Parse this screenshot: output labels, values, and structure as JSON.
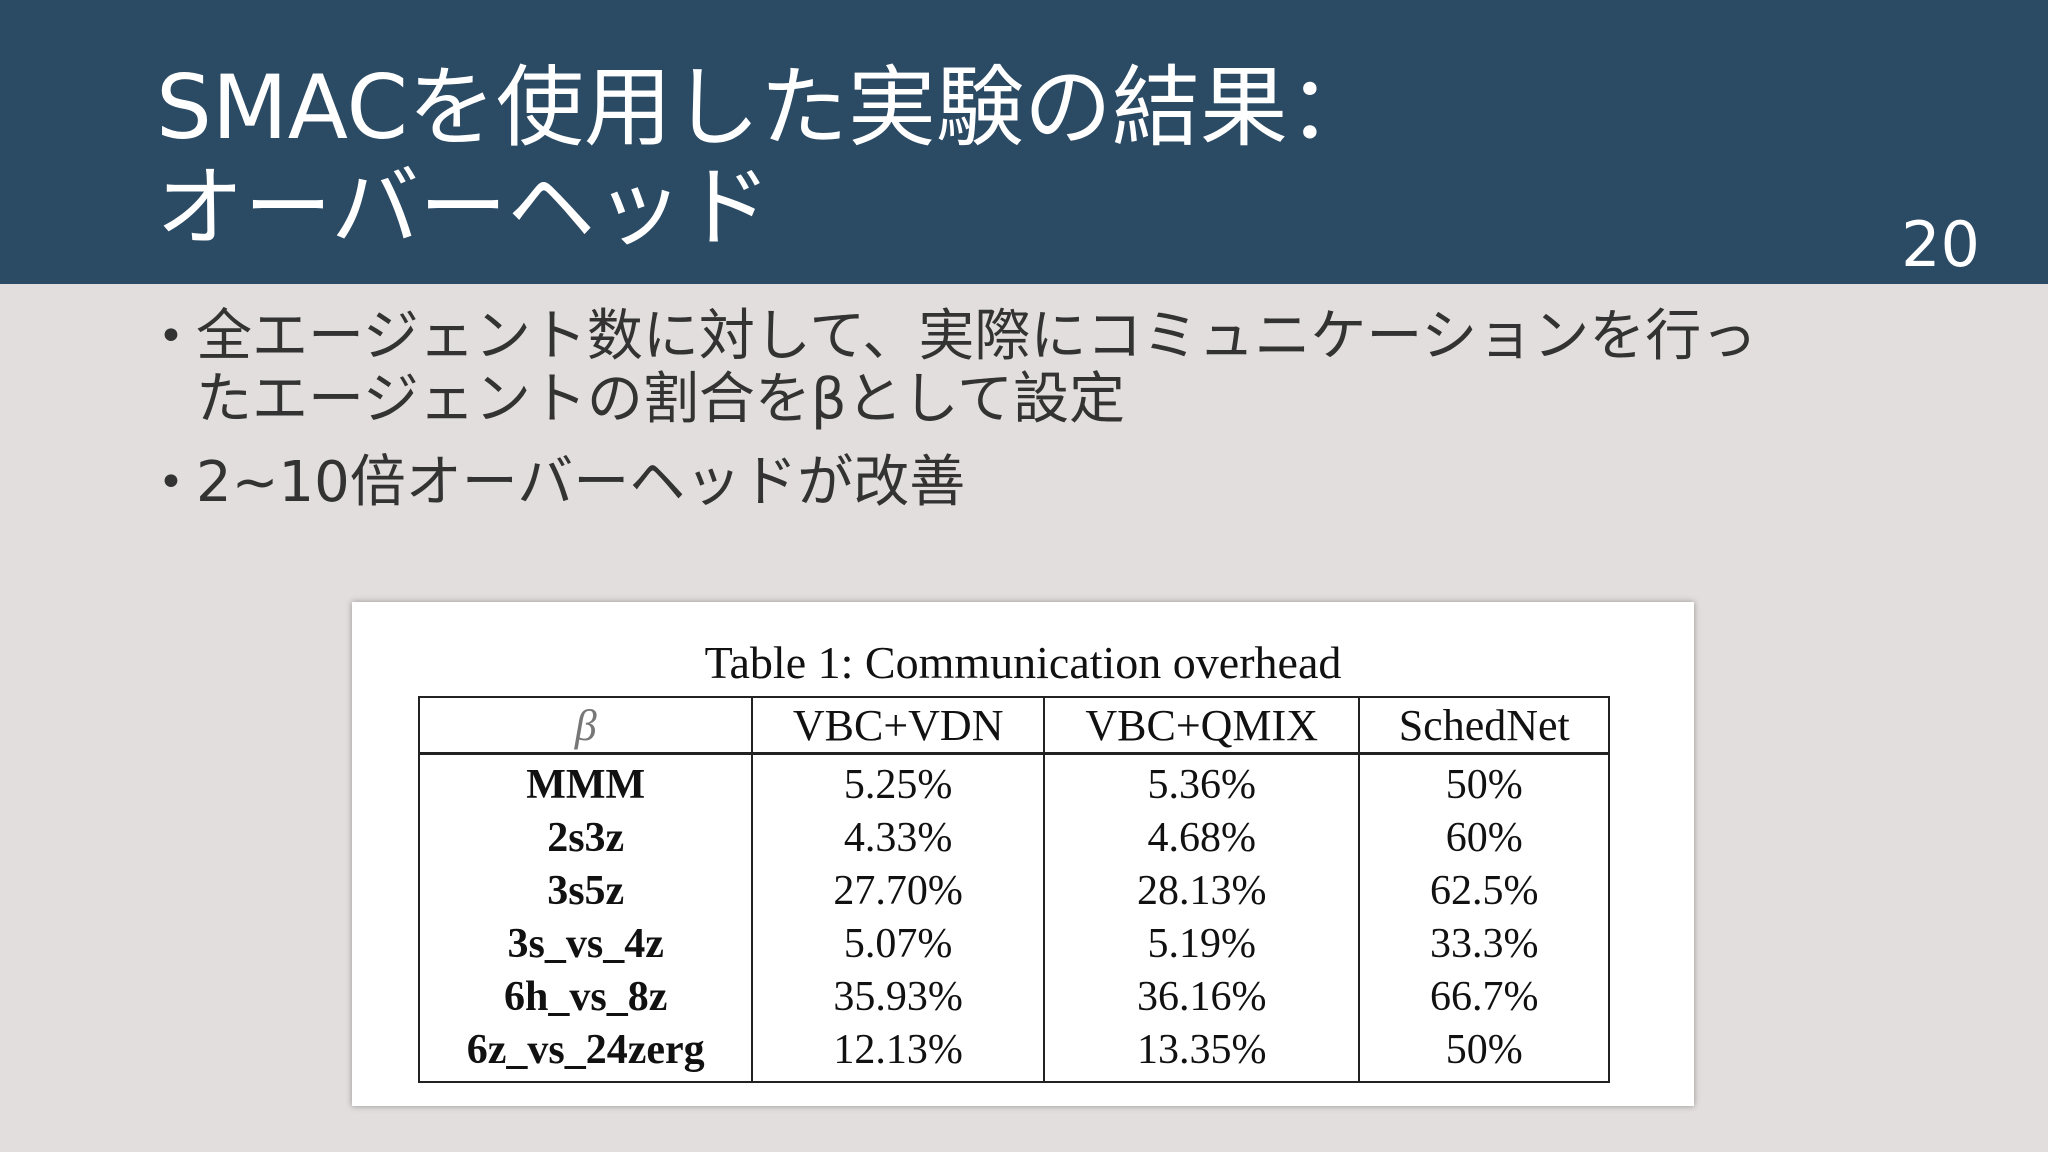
{
  "slide": {
    "title_lines": [
      "SMACを使用した実験の結果：",
      "オーバーヘッド"
    ],
    "page_number": "20",
    "bullets": [
      [
        "全エージェント数に対して、実際にコミュニケーションを行っ",
        "たエージェントの割合をβとして設定"
      ],
      [
        "2~10倍オーバーヘッドが改善"
      ]
    ],
    "colors": {
      "header_bg": "#2b4a64",
      "body_bg": "#e2dedd",
      "title_text": "#ffffff"
    }
  },
  "table": {
    "caption": "Table 1: Communication overhead",
    "headers": [
      "β",
      "VBC+VDN",
      "VBC+QMIX",
      "SchedNet"
    ],
    "rows": [
      [
        "MMM",
        "5.25%",
        "5.36%",
        "50%"
      ],
      [
        "2s3z",
        "4.33%",
        "4.68%",
        "60%"
      ],
      [
        "3s5z",
        "27.70%",
        "28.13%",
        "62.5%"
      ],
      [
        "3s_vs_4z",
        "5.07%",
        "5.19%",
        "33.3%"
      ],
      [
        "6h_vs_8z",
        "35.93%",
        "36.16%",
        "66.7%"
      ],
      [
        "6z_vs_24zerg",
        "12.13%",
        "13.35%",
        "50%"
      ]
    ]
  }
}
